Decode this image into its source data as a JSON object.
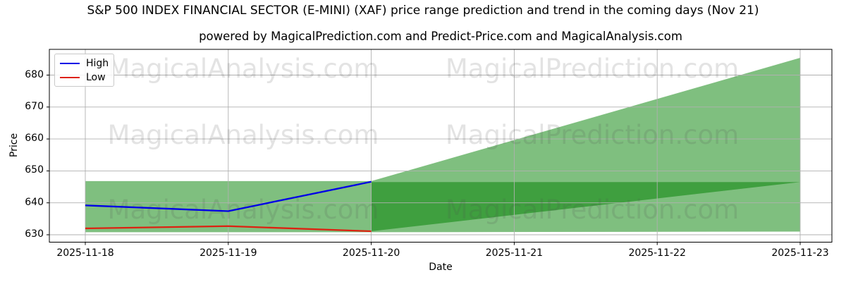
{
  "title": "S&P 500 INDEX FINANCIAL SECTOR (E-MINI) (XAF) price range prediction and trend in the coming days (Nov 21)",
  "subtitle": "powered by MagicalPrediction.com and Predict-Price.com and MagicalAnalysis.com",
  "legend": {
    "high_label": "High",
    "low_label": "Low"
  },
  "axes": {
    "y_label": "Price",
    "x_label": "Date",
    "x_ticks": [
      "2025-11-18",
      "2025-11-19",
      "2025-11-20",
      "2025-11-21",
      "2025-11-22",
      "2025-11-23"
    ],
    "y_ticks": [
      680,
      670,
      660,
      650,
      640,
      630
    ]
  },
  "watermarks": {
    "left": "MagicalAnalysis.com",
    "right": "MagicalPrediction.com"
  },
  "colors": {
    "high_line": "#0000e6",
    "low_line": "#dd2211",
    "band_fill": "rgba(0,128,0,0.5)",
    "grid": "#b0b0b0",
    "spine": "#000000",
    "watermark": "rgba(80,80,80,0.16)"
  },
  "chart_data": {
    "type": "line",
    "title": "S&P 500 INDEX FINANCIAL SECTOR (E-MINI) (XAF) price range prediction and trend in the coming days (Nov 21)",
    "xlabel": "Date",
    "ylabel": "Price",
    "x": [
      "2025-11-18",
      "2025-11-19",
      "2025-11-20"
    ],
    "series": [
      {
        "name": "High",
        "color": "blue",
        "values": [
          639.2,
          637.4,
          646.6
        ]
      },
      {
        "name": "Low",
        "color": "red",
        "values": [
          632.0,
          632.7,
          631.1
        ]
      }
    ],
    "bands": [
      {
        "name": "observed-range",
        "x": [
          "2025-11-18",
          "2025-11-20"
        ],
        "upper": [
          646.8,
          646.8
        ],
        "lower": [
          630.8,
          630.8
        ],
        "merge_with_next": true
      },
      {
        "name": "forecast-fan",
        "x": [
          "2025-11-20",
          "2025-11-23"
        ],
        "upper": [
          646.8,
          685.4
        ],
        "lower": [
          630.8,
          631.0
        ]
      },
      {
        "name": "forecast-converging-band",
        "x": [
          "2025-11-20",
          "2025-11-23"
        ],
        "upper": [
          646.5,
          646.5
        ],
        "lower": [
          631.1,
          646.5
        ]
      }
    ],
    "ylim": [
      627.6,
      688.0
    ],
    "xlim": [
      "2025-11-18",
      "2025-11-23"
    ],
    "grid": true,
    "legend_position": "upper left",
    "forecast_start": "2025-11-20",
    "forecast_note": "Nov 21"
  }
}
